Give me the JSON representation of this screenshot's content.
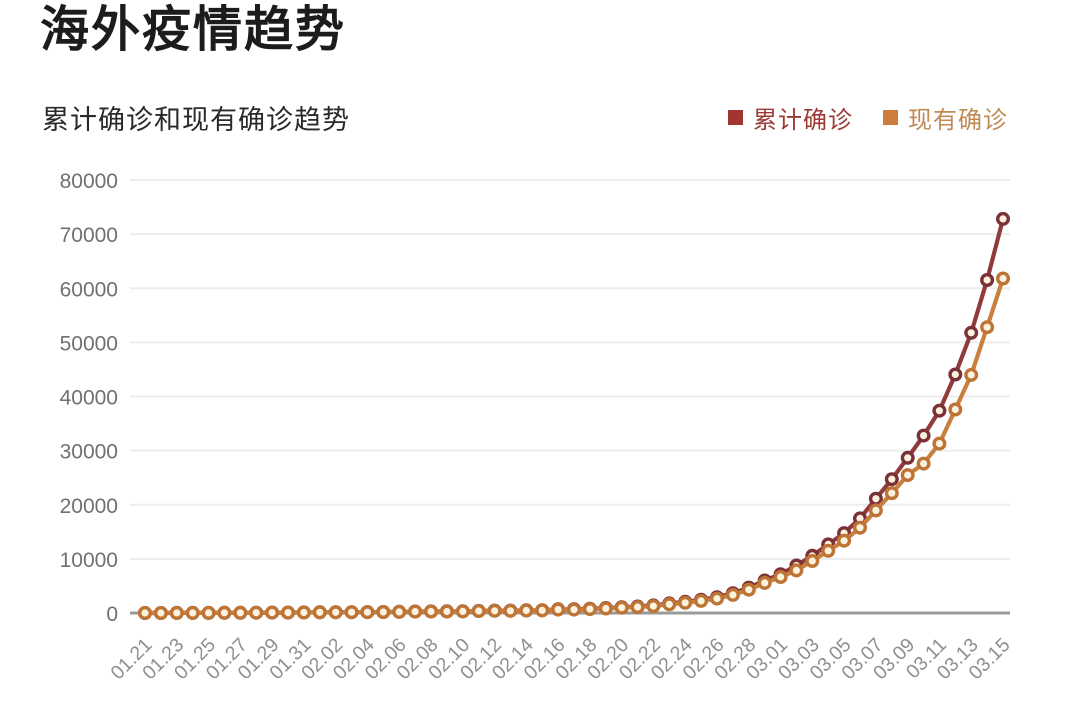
{
  "header": {
    "title": "海外疫情趋势",
    "subtitle": "累计确诊和现有确诊趋势"
  },
  "legend": {
    "items": [
      {
        "label": "累计确诊",
        "swatch_color": "#a23531",
        "text_color": "#9c3a36"
      },
      {
        "label": "现有确诊",
        "swatch_color": "#cd7c3c",
        "text_color": "#c08a55"
      }
    ]
  },
  "chart_data": {
    "type": "line",
    "title": "海外疫情趋势",
    "subtitle": "累计确诊和现有确诊趋势",
    "x": [
      "01.21",
      "01.22",
      "01.23",
      "01.24",
      "01.25",
      "01.26",
      "01.27",
      "01.28",
      "01.29",
      "01.30",
      "01.31",
      "02.01",
      "02.02",
      "02.03",
      "02.04",
      "02.05",
      "02.06",
      "02.07",
      "02.08",
      "02.09",
      "02.10",
      "02.11",
      "02.12",
      "02.13",
      "02.14",
      "02.15",
      "02.16",
      "02.17",
      "02.18",
      "02.19",
      "02.20",
      "02.21",
      "02.22",
      "02.23",
      "02.24",
      "02.25",
      "02.26",
      "02.27",
      "02.28",
      "02.29",
      "03.01",
      "03.02",
      "03.03",
      "03.04",
      "03.05",
      "03.06",
      "03.07",
      "03.08",
      "03.09",
      "03.10",
      "03.11",
      "03.12",
      "03.13",
      "03.14",
      "03.15"
    ],
    "x_tick_step": 2,
    "x_tick_labels": [
      "01.21",
      "01.23",
      "01.25",
      "01.27",
      "01.29",
      "01.31",
      "02.02",
      "02.04",
      "02.06",
      "02.08",
      "02.10",
      "02.12",
      "02.14",
      "02.16",
      "02.18",
      "02.20",
      "02.22",
      "02.24",
      "02.26",
      "02.28",
      "03.01",
      "03.03",
      "03.05",
      "03.07",
      "03.09",
      "03.11",
      "03.13",
      "03.15"
    ],
    "series": [
      {
        "name": "累计确诊",
        "color": "#913a3c",
        "marker_stroke": "#7b3138",
        "values": [
          4,
          8,
          11,
          17,
          23,
          29,
          37,
          56,
          68,
          82,
          106,
          132,
          146,
          153,
          159,
          191,
          216,
          270,
          288,
          307,
          319,
          395,
          441,
          447,
          505,
          526,
          683,
          694,
          794,
          924,
          1076,
          1200,
          1402,
          1769,
          2069,
          2459,
          2918,
          3664,
          4691,
          6009,
          7169,
          8774,
          10566,
          12668,
          14768,
          17481,
          21110,
          24727,
          28674,
          32778,
          37371,
          44067,
          51767,
          61518,
          72819
        ]
      },
      {
        "name": "现有确诊",
        "color": "#c8803f",
        "marker_stroke": "#bd7435",
        "values": [
          4,
          8,
          11,
          16,
          22,
          28,
          36,
          54,
          65,
          78,
          100,
          124,
          137,
          143,
          148,
          178,
          201,
          252,
          268,
          285,
          296,
          366,
          408,
          412,
          464,
          480,
          628,
          635,
          724,
          840,
          978,
          1088,
          1268,
          1610,
          1884,
          2240,
          2660,
          3350,
          4310,
          5560,
          6650,
          7870,
          9600,
          11500,
          13360,
          15760,
          18960,
          22130,
          25480,
          27600,
          31300,
          37600,
          44000,
          52800,
          61800
        ]
      }
    ],
    "marker_fill": "#fcf3de",
    "ylim": [
      0,
      80000
    ],
    "y_ticks": [
      0,
      10000,
      20000,
      30000,
      40000,
      50000,
      60000,
      70000,
      80000
    ],
    "ylabel": "",
    "xlabel": "",
    "grid": true,
    "legend_position": "top-right",
    "axis_color": "#9a9a9a",
    "grid_color": "#ededed",
    "y_tick_label_color": "#707070",
    "x_tick_label_color": "#8f8f8f"
  }
}
